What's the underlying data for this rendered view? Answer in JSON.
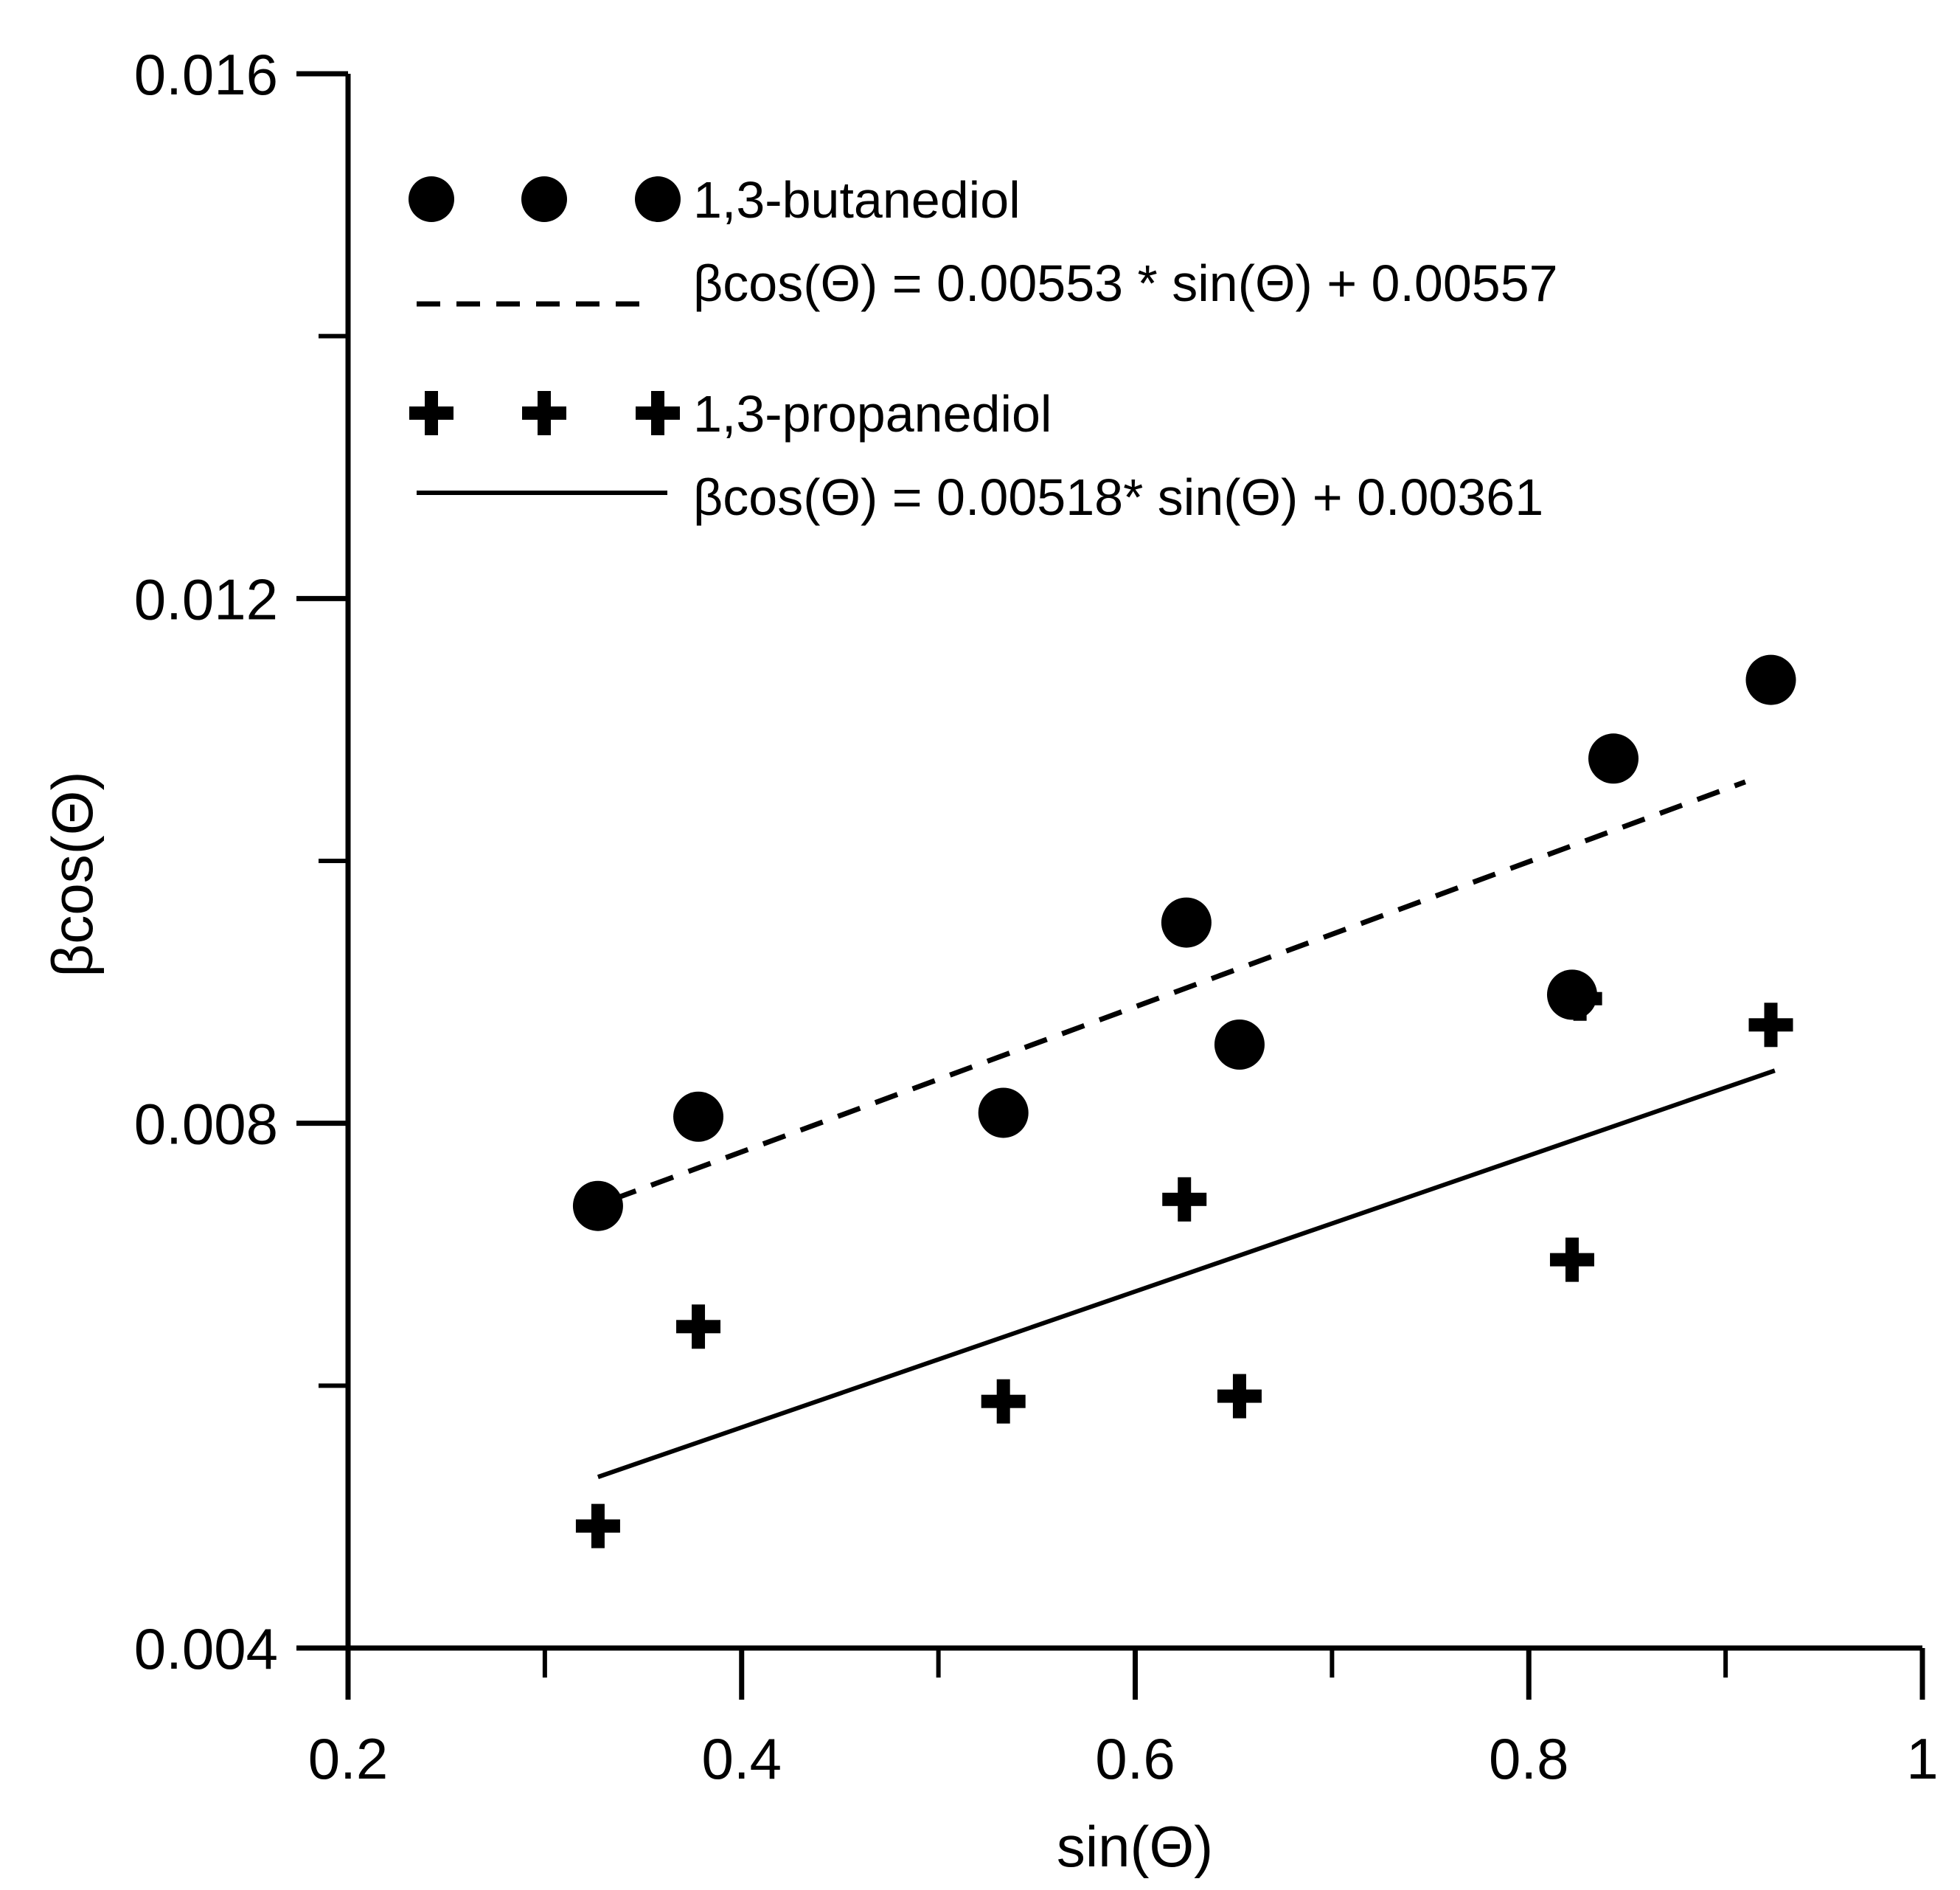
{
  "colors": {
    "ink": "#000000",
    "background": "#ffffff"
  },
  "chart_data": {
    "type": "scatter",
    "xlabel": "sin(Θ)",
    "ylabel": "βcos(Θ)",
    "xlim": [
      0.2,
      1.0
    ],
    "ylim": [
      0.004,
      0.016
    ],
    "x_major_ticks": [
      0.2,
      0.4,
      0.6,
      0.8,
      1.0
    ],
    "x_minor_ticks": [
      0.3,
      0.5,
      0.7,
      0.9
    ],
    "x_tick_labels": [
      "0.2",
      "0.4",
      "0.6",
      "0.8",
      "1"
    ],
    "y_major_ticks": [
      0.004,
      0.008,
      0.012,
      0.016
    ],
    "y_minor_ticks": [
      0.006,
      0.01,
      0.014
    ],
    "y_tick_labels": [
      "0.004",
      "0.008",
      "0.012",
      "0.016"
    ],
    "grid": false,
    "legend_position": "top-left",
    "series": [
      {
        "name": "1,3-butanediol",
        "marker": "circle",
        "x": [
          0.327,
          0.378,
          0.533,
          0.626,
          0.653,
          0.822,
          0.843,
          0.923
        ],
        "y": [
          0.00737,
          0.00805,
          0.00808,
          0.00953,
          0.0086,
          0.00898,
          0.01078,
          0.01138
        ],
        "fit": {
          "label": "βcos(Θ) = 0.00553 * sin(Θ) + 0.00557",
          "slope": 0.00553,
          "intercept": 0.00557,
          "x_range": [
            0.335,
            0.91
          ],
          "style": "dashed"
        }
      },
      {
        "name": "1,3-propanediol",
        "marker": "plus",
        "x": [
          0.327,
          0.378,
          0.533,
          0.625,
          0.653,
          0.822,
          0.826,
          0.923
        ],
        "y": [
          0.00493,
          0.00645,
          0.00588,
          0.00742,
          0.00592,
          0.00696,
          0.00895,
          0.00875
        ],
        "fit": {
          "label": "βcos(Θ)  = 0.00518* sin(Θ) + 0.00361",
          "slope": 0.00518,
          "intercept": 0.00361,
          "x_range": [
            0.327,
            0.925
          ],
          "style": "solid"
        }
      }
    ]
  }
}
